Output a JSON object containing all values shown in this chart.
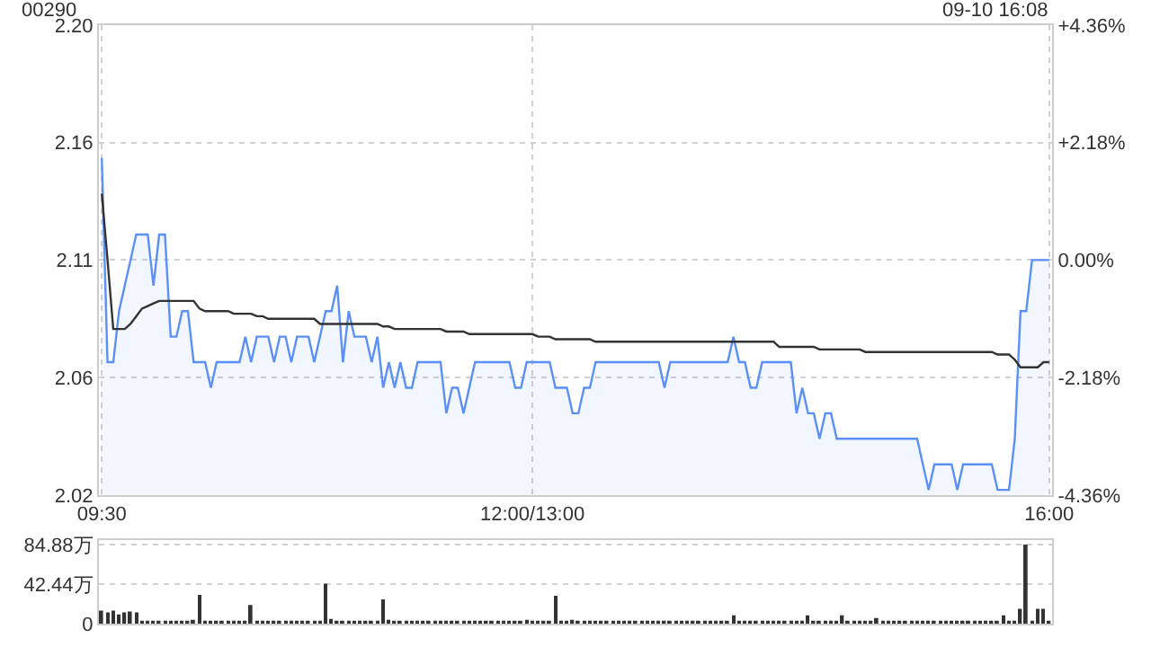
{
  "chart_data": [
    {
      "type": "line",
      "title": "00290",
      "annotations": [
        "09-10 16:08"
      ],
      "categories": [
        "09:30",
        null,
        null,
        null,
        null,
        null,
        null,
        null,
        null,
        null,
        null,
        null,
        null,
        null,
        null,
        null,
        null,
        null,
        null,
        null,
        null,
        null,
        null,
        null,
        null,
        null,
        null,
        null,
        null,
        null,
        null,
        null,
        null,
        null,
        null,
        null,
        null,
        null,
        null,
        null,
        null,
        null,
        null,
        null,
        null,
        null,
        null,
        null,
        null,
        null,
        null,
        null,
        null,
        null,
        null,
        null,
        null,
        null,
        null,
        null,
        null,
        null,
        null,
        null,
        null,
        null,
        null,
        null,
        null,
        null,
        null,
        null,
        null,
        null,
        null,
        "12:00/13:00",
        null,
        null,
        null,
        null,
        null,
        null,
        null,
        null,
        null,
        null,
        null,
        null,
        null,
        null,
        null,
        null,
        null,
        null,
        null,
        null,
        null,
        null,
        null,
        null,
        null,
        null,
        null,
        null,
        null,
        null,
        null,
        null,
        null,
        null,
        null,
        null,
        null,
        null,
        null,
        null,
        null,
        null,
        null,
        null,
        null,
        null,
        null,
        null,
        null,
        null,
        null,
        null,
        null,
        null,
        null,
        null,
        null,
        null,
        null,
        null,
        null,
        null,
        null,
        null,
        null,
        null,
        null,
        null,
        null,
        null,
        null,
        null,
        null,
        null,
        null,
        null,
        null,
        null,
        null,
        null,
        null,
        null,
        null,
        null,
        null,
        null,
        null,
        null,
        null,
        "16:00"
      ],
      "ylim": [
        2.018,
        2.202
      ],
      "yticks": [
        {
          "value": 2.018,
          "label": "2.02"
        },
        {
          "value": 2.064,
          "label": "2.06"
        },
        {
          "value": 2.11,
          "label": "2.11"
        },
        {
          "value": 2.156,
          "label": "2.16"
        },
        {
          "value": 2.202,
          "label": "2.20"
        }
      ],
      "y2lim": [
        -4.36,
        4.36
      ],
      "y2ticks": [
        {
          "value": -4.36,
          "label": "-4.36%"
        },
        {
          "value": -2.18,
          "label": "-2.18%"
        },
        {
          "value": 0,
          "label": "0.00%"
        },
        {
          "value": 2.18,
          "label": "+2.18%"
        },
        {
          "value": 4.36,
          "label": "+4.36%"
        }
      ],
      "grid": true,
      "line_style": "solid",
      "marker": "none",
      "series": [
        {
          "type": "area",
          "color": "#5b8ff9",
          "values": [
            2.15,
            2.07,
            2.07,
            2.09,
            2.1,
            2.11,
            2.12,
            2.12,
            2.12,
            2.1,
            2.12,
            2.12,
            2.08,
            2.08,
            2.09,
            2.09,
            2.07,
            2.07,
            2.07,
            2.06,
            2.07,
            2.07,
            2.07,
            2.07,
            2.07,
            2.08,
            2.07,
            2.08,
            2.08,
            2.08,
            2.07,
            2.08,
            2.08,
            2.07,
            2.08,
            2.08,
            2.08,
            2.07,
            2.08,
            2.09,
            2.09,
            2.1,
            2.07,
            2.09,
            2.08,
            2.08,
            2.08,
            2.07,
            2.08,
            2.06,
            2.07,
            2.06,
            2.07,
            2.06,
            2.06,
            2.07,
            2.07,
            2.07,
            2.07,
            2.07,
            2.05,
            2.06,
            2.06,
            2.05,
            2.06,
            2.07,
            2.07,
            2.07,
            2.07,
            2.07,
            2.07,
            2.07,
            2.06,
            2.06,
            2.07,
            2.07,
            2.07,
            2.07,
            2.07,
            2.06,
            2.06,
            2.06,
            2.05,
            2.05,
            2.06,
            2.06,
            2.07,
            2.07,
            2.07,
            2.07,
            2.07,
            2.07,
            2.07,
            2.07,
            2.07,
            2.07,
            2.07,
            2.07,
            2.06,
            2.07,
            2.07,
            2.07,
            2.07,
            2.07,
            2.07,
            2.07,
            2.07,
            2.07,
            2.07,
            2.07,
            2.08,
            2.07,
            2.07,
            2.06,
            2.06,
            2.07,
            2.07,
            2.07,
            2.07,
            2.07,
            2.07,
            2.05,
            2.06,
            2.05,
            2.05,
            2.04,
            2.05,
            2.05,
            2.04,
            2.04,
            2.04,
            2.04,
            2.04,
            2.04,
            2.04,
            2.04,
            2.04,
            2.04,
            2.04,
            2.04,
            2.04,
            2.04,
            2.04,
            2.03,
            2.02,
            2.03,
            2.03,
            2.03,
            2.03,
            2.02,
            2.03,
            2.03,
            2.03,
            2.03,
            2.03,
            2.03,
            2.02,
            2.02,
            2.02,
            2.04,
            2.09,
            2.09,
            2.11,
            2.11,
            2.11,
            2.11
          ]
        },
        {
          "type": "line",
          "color": "#333333",
          "values": [
            2.136,
            2.11,
            2.083,
            2.083,
            2.083,
            2.085,
            2.088,
            2.091,
            2.092,
            2.093,
            2.094,
            2.094,
            2.094,
            2.094,
            2.094,
            2.094,
            2.094,
            2.091,
            2.09,
            2.09,
            2.09,
            2.09,
            2.09,
            2.089,
            2.089,
            2.089,
            2.089,
            2.088,
            2.088,
            2.087,
            2.087,
            2.087,
            2.087,
            2.087,
            2.087,
            2.087,
            2.087,
            2.087,
            2.085,
            2.085,
            2.085,
            2.085,
            2.085,
            2.085,
            2.085,
            2.085,
            2.085,
            2.085,
            2.085,
            2.084,
            2.084,
            2.083,
            2.083,
            2.083,
            2.083,
            2.083,
            2.083,
            2.083,
            2.083,
            2.083,
            2.082,
            2.082,
            2.082,
            2.082,
            2.081,
            2.081,
            2.081,
            2.081,
            2.081,
            2.081,
            2.081,
            2.081,
            2.081,
            2.081,
            2.081,
            2.081,
            2.08,
            2.08,
            2.08,
            2.079,
            2.079,
            2.079,
            2.079,
            2.079,
            2.079,
            2.079,
            2.078,
            2.078,
            2.078,
            2.078,
            2.078,
            2.078,
            2.078,
            2.078,
            2.078,
            2.078,
            2.078,
            2.078,
            2.078,
            2.078,
            2.078,
            2.078,
            2.078,
            2.078,
            2.078,
            2.078,
            2.078,
            2.078,
            2.078,
            2.078,
            2.078,
            2.078,
            2.078,
            2.078,
            2.078,
            2.078,
            2.078,
            2.078,
            2.076,
            2.076,
            2.076,
            2.076,
            2.076,
            2.076,
            2.076,
            2.075,
            2.075,
            2.075,
            2.075,
            2.075,
            2.075,
            2.075,
            2.075,
            2.074,
            2.074,
            2.074,
            2.074,
            2.074,
            2.074,
            2.074,
            2.074,
            2.074,
            2.074,
            2.074,
            2.074,
            2.074,
            2.074,
            2.074,
            2.074,
            2.074,
            2.074,
            2.074,
            2.074,
            2.074,
            2.074,
            2.074,
            2.073,
            2.073,
            2.073,
            2.071,
            2.068,
            2.068,
            2.068,
            2.068,
            2.07,
            2.07
          ]
        }
      ]
    },
    {
      "type": "bar",
      "categories": [
        null,
        null,
        null,
        null,
        null,
        null,
        null,
        null,
        null,
        null,
        null,
        null,
        null,
        null,
        null,
        null,
        null,
        null,
        null,
        null,
        null,
        null,
        null,
        null,
        null,
        null,
        null,
        null,
        null,
        null,
        null,
        null,
        null,
        null,
        null,
        null,
        null,
        null,
        null,
        null,
        null,
        null,
        null,
        null,
        null,
        null,
        null,
        null,
        null,
        null,
        null,
        null,
        null,
        null,
        null,
        null,
        null,
        null,
        null,
        null,
        null,
        null,
        null,
        null,
        null,
        null,
        null,
        null,
        null,
        null,
        null,
        null,
        null,
        null,
        null,
        null,
        null,
        null,
        null,
        null,
        null,
        null,
        null,
        null,
        null,
        null,
        null,
        null,
        null,
        null,
        null,
        null,
        null,
        null,
        null,
        null,
        null,
        null,
        null,
        null,
        null,
        null,
        null,
        null,
        null,
        null,
        null,
        null,
        null,
        null,
        null,
        null,
        null,
        null,
        null,
        null,
        null,
        null,
        null,
        null,
        null,
        null,
        null,
        null,
        null,
        null,
        null,
        null,
        null,
        null,
        null,
        null,
        null,
        null,
        null,
        null,
        null,
        null,
        null,
        null,
        null,
        null,
        null,
        null,
        null,
        null,
        null,
        null,
        null,
        null,
        null,
        null,
        null,
        null,
        null,
        null,
        null,
        null,
        null,
        null,
        null,
        null,
        null,
        null,
        null,
        null
      ],
      "ylim": [
        0,
        90
      ],
      "yticks": [
        {
          "value": 0,
          "label": "0"
        },
        {
          "value": 42.44,
          "label": "42.44万"
        },
        {
          "value": 84.88,
          "label": "84.88万"
        }
      ],
      "grid": "y",
      "tick_labels": "y",
      "series": [
        {
          "color": "#333333",
          "values": [
            14,
            12,
            14,
            10,
            12,
            13,
            12,
            3,
            2,
            2,
            2,
            2,
            2,
            3,
            2,
            2,
            4,
            31,
            2,
            2,
            2,
            2,
            3,
            2,
            2,
            2,
            20,
            3,
            2,
            2,
            2,
            2,
            3,
            2,
            2,
            2,
            2,
            2,
            2,
            43,
            5,
            3,
            2,
            2,
            3,
            2,
            2,
            2,
            3,
            26,
            4,
            3,
            2,
            2,
            2,
            3,
            2,
            2,
            2,
            2,
            2,
            2,
            2,
            2,
            3,
            2,
            2,
            2,
            2,
            2,
            2,
            3,
            2,
            2,
            4,
            2,
            2,
            2,
            2,
            30,
            3,
            2,
            4,
            2,
            2,
            2,
            3,
            2,
            2,
            2,
            2,
            2,
            3,
            2,
            2,
            2,
            2,
            2,
            2,
            2,
            3,
            2,
            2,
            2,
            2,
            2,
            2,
            2,
            2,
            2,
            9,
            2,
            2,
            2,
            3,
            2,
            2,
            2,
            2,
            2,
            2,
            2,
            2,
            9,
            2,
            2,
            2,
            2,
            2,
            9,
            2,
            2,
            2,
            2,
            2,
            6,
            2,
            2,
            2,
            2,
            2,
            2,
            2,
            2,
            2,
            2,
            2,
            2,
            2,
            2,
            2,
            2,
            2,
            2,
            3,
            2,
            2,
            9,
            2,
            2,
            16,
            85,
            2,
            16,
            16,
            2
          ]
        }
      ]
    }
  ]
}
